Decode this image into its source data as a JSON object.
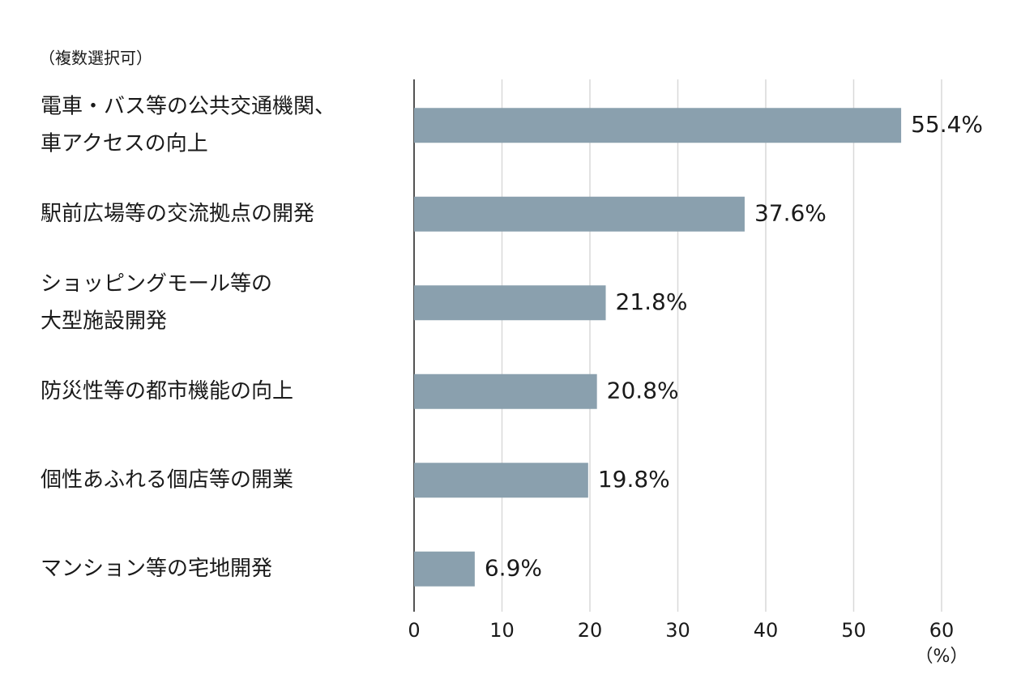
{
  "chart_data": {
    "type": "bar",
    "orientation": "horizontal",
    "subtitle": "（複数選択可）",
    "x_unit_label": "（%）",
    "categories": [
      [
        "電車・バス等の公共交通機関、",
        "車アクセスの向上"
      ],
      [
        "駅前広場等の交流拠点の開発"
      ],
      [
        "ショッピングモール等の",
        "大型施設開発"
      ],
      [
        "防災性等の都市機能の向上"
      ],
      [
        "個性あふれる個店等の開業"
      ],
      [
        "マンション等の宅地開発"
      ]
    ],
    "values": [
      55.4,
      37.6,
      21.8,
      20.8,
      19.8,
      6.9
    ],
    "value_labels": [
      "55.4%",
      "37.6%",
      "21.8%",
      "20.8%",
      "19.8%",
      "6.9%"
    ],
    "color": "#8aa0ae",
    "xlim": [
      0,
      60
    ],
    "xticks": [
      0,
      10,
      20,
      30,
      40,
      50,
      60
    ],
    "grid": true
  }
}
